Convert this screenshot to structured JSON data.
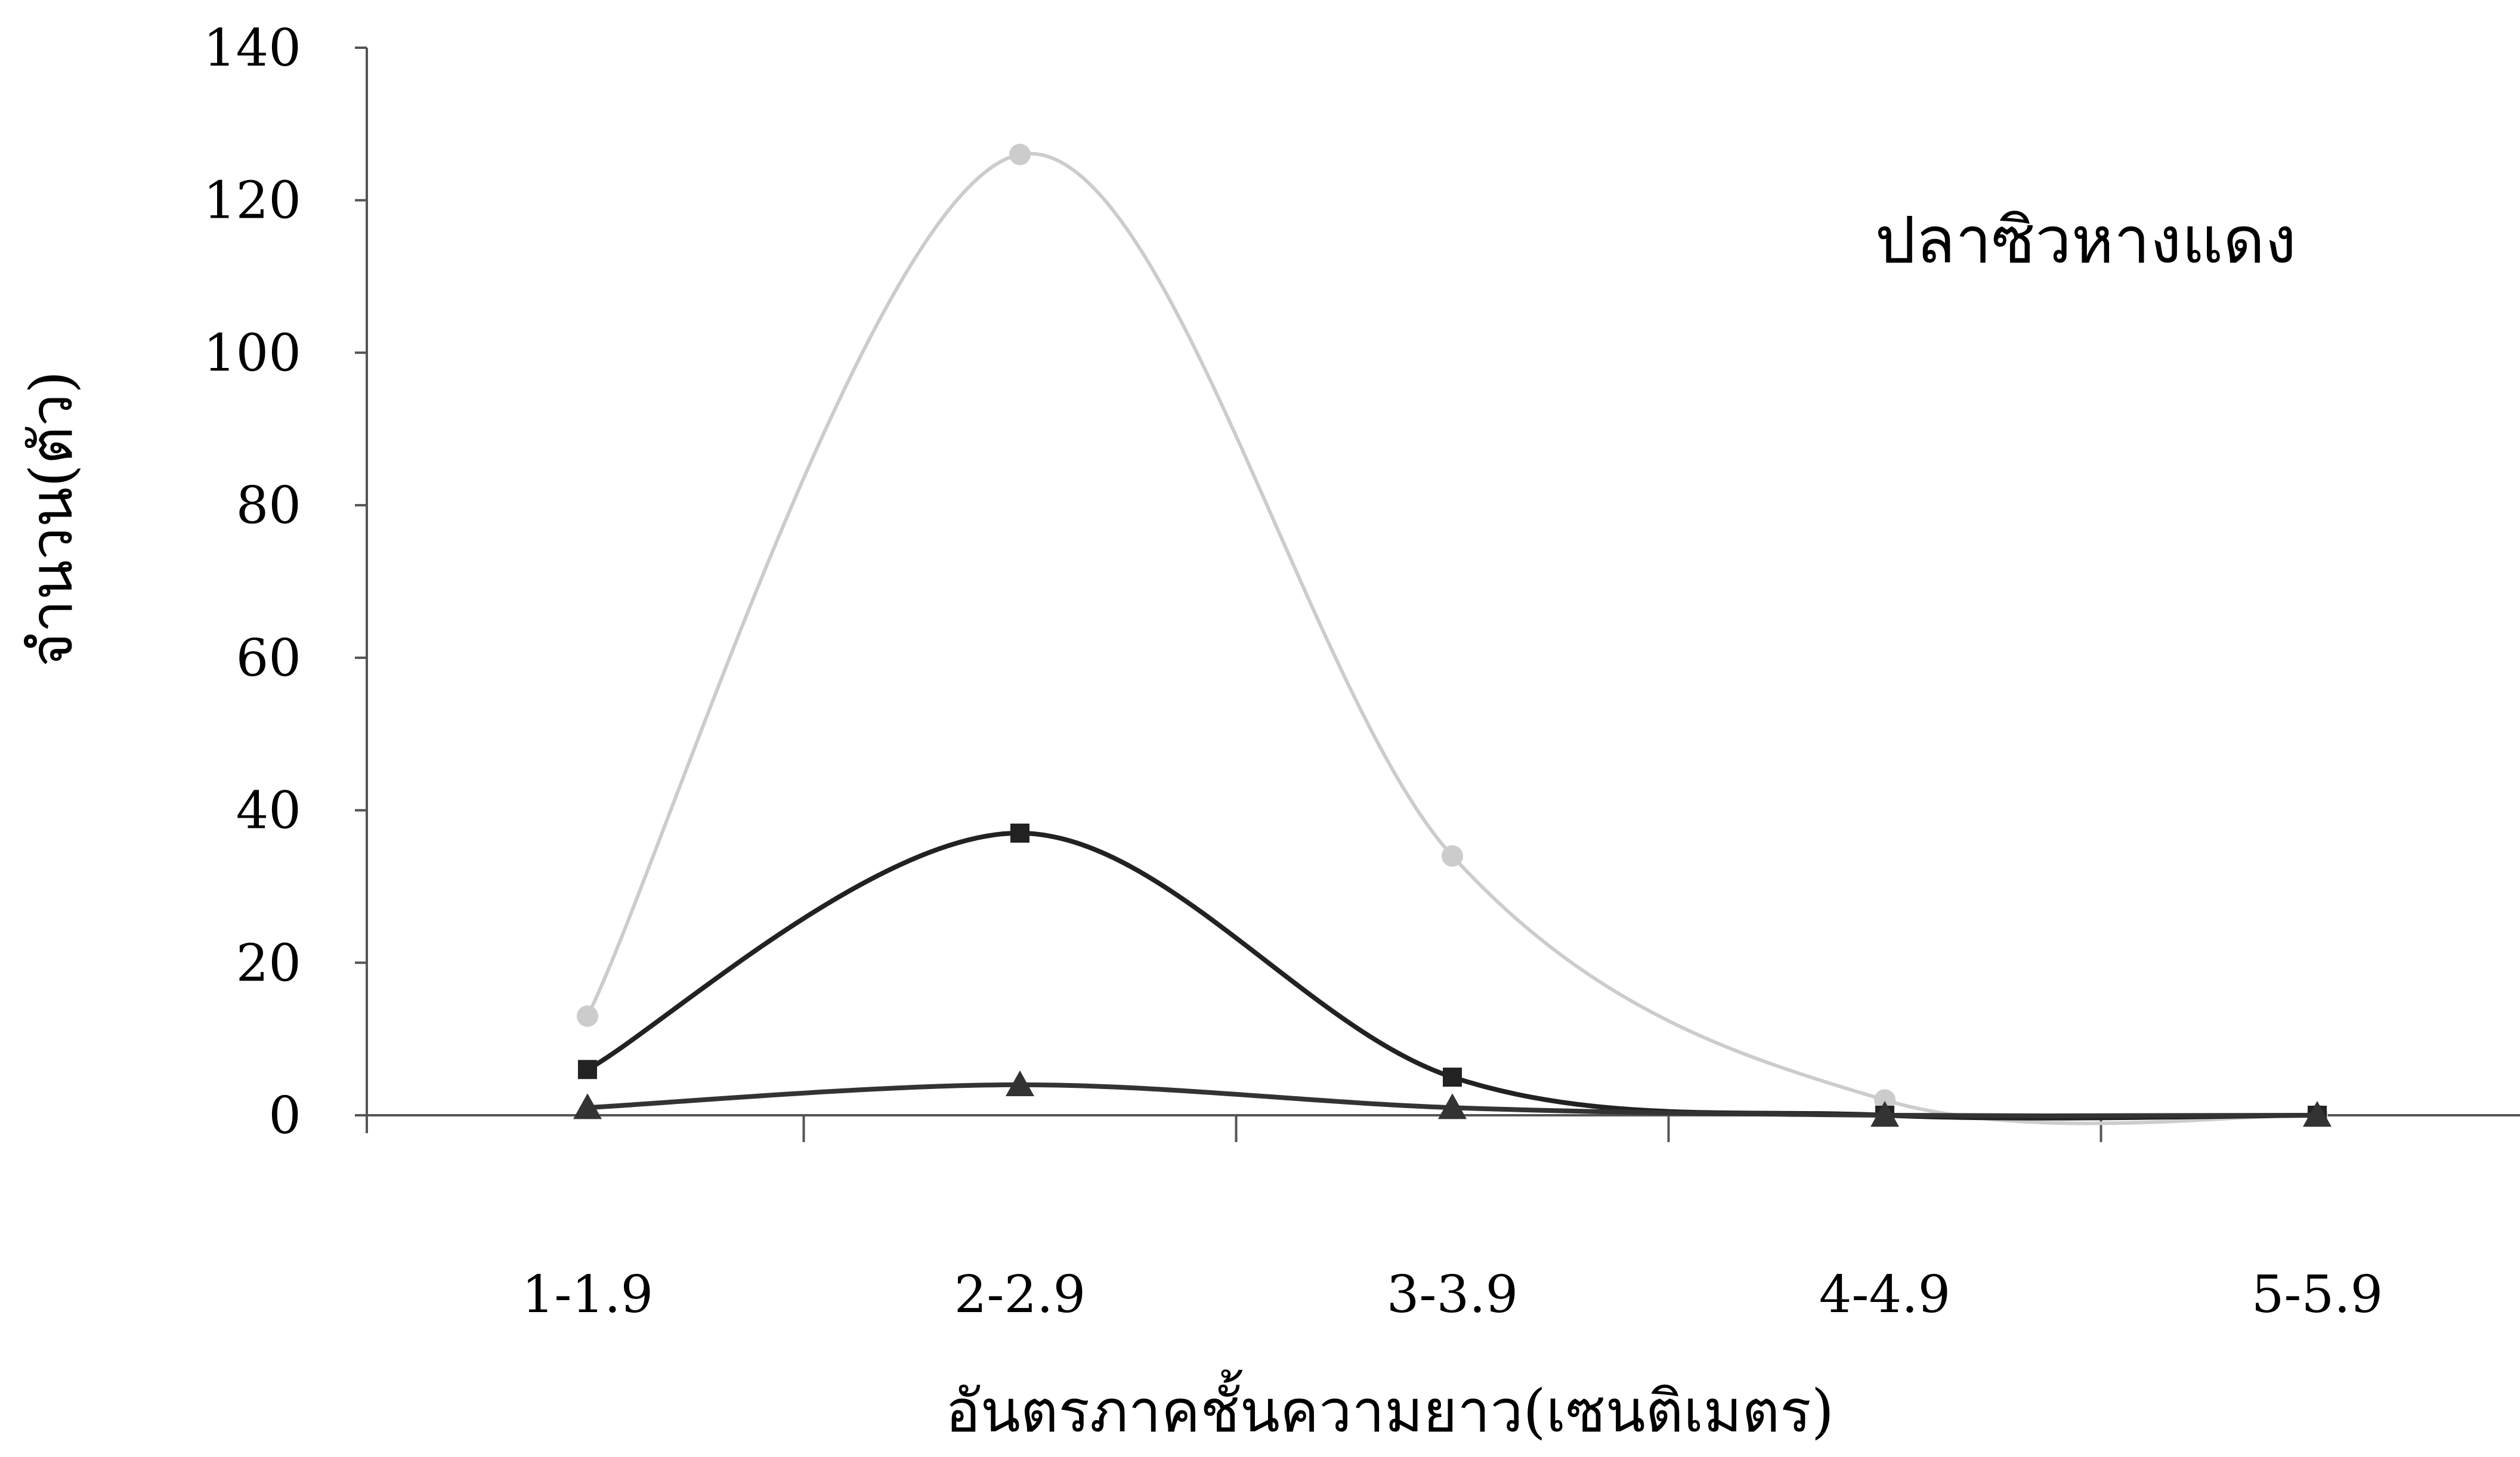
{
  "chart_data": {
    "type": "line",
    "title": "ปลาซิวหางแดง",
    "xlabel": "อันตรภาคชั้นความยาว(เซนติเมตร)",
    "ylabel": "จำนวน(ตัว)",
    "categories": [
      "1-1.9",
      "2-2.9",
      "3-3.9",
      "4-4.9",
      "5-5.9"
    ],
    "ylim": [
      0,
      140
    ],
    "yticks": [
      0,
      20,
      40,
      60,
      80,
      100,
      120,
      140
    ],
    "grid": false,
    "legend": "none",
    "series": [
      {
        "color": "#cccccc",
        "marker": "circle",
        "values": [
          13,
          126,
          34,
          2,
          0
        ]
      },
      {
        "color": "#222222",
        "marker": "square",
        "values": [
          6,
          37,
          5,
          0,
          0
        ]
      },
      {
        "color": "#333333",
        "marker": "triangle",
        "values": [
          1,
          4,
          1,
          0,
          0
        ]
      }
    ]
  }
}
